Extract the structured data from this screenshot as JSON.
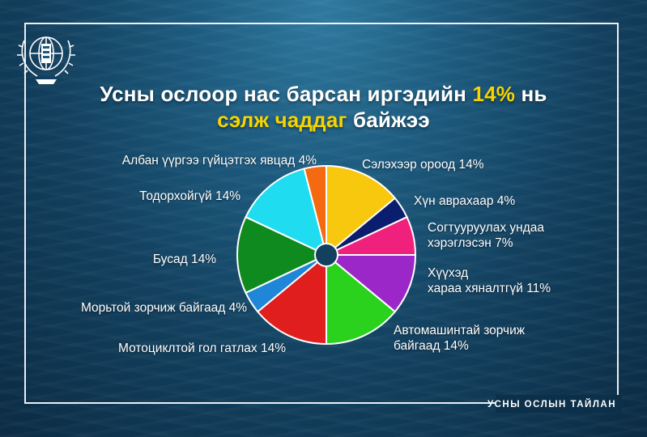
{
  "title": {
    "line1_pre": "Усны ослоор нас барсан иргэдийн ",
    "line1_hl": "14%",
    "line1_post": " нь",
    "line2_hl": "сэлж чаддаг",
    "line2_post": " байжээ"
  },
  "footer": "УСНЫ ОСЛЫН ТАЙЛАН",
  "colors": {
    "highlight": "#f5d400",
    "center": "#12405e"
  },
  "chart_data": {
    "type": "pie",
    "slices": [
      {
        "label": "Сэлэхээр ороод 14%",
        "lines": [
          "Сэлэхээр ороод 14%"
        ],
        "value": 14,
        "color": "#f7c80d"
      },
      {
        "label": "Хүн аврахаар 4%",
        "lines": [
          "Хүн аврахаар 4%"
        ],
        "value": 4,
        "color": "#0b1d6e"
      },
      {
        "label": "Согтууруулах ундаа хэрэглэсэн 7%",
        "lines": [
          "Согтууруулах ундаа",
          "хэрэглэсэн 7%"
        ],
        "value": 7,
        "color": "#f0217c"
      },
      {
        "label": "Хүүхэд хараа хяналтгүй 11%",
        "lines": [
          "Хүүхэд",
          "хараа хяналтгүй 11%"
        ],
        "value": 11,
        "color": "#9b27c9"
      },
      {
        "label": "Автомашинтай зорчиж байгаад 14%",
        "lines": [
          "Автомашинтай зорчиж",
          "байгаад 14%"
        ],
        "value": 14,
        "color": "#2ad21e"
      },
      {
        "label": "Мотоциклтой гол гатлах 14%",
        "lines": [
          "Мотоциклтой гол гатлах 14%"
        ],
        "value": 14,
        "color": "#e01e1e"
      },
      {
        "label": "Морьтой зорчиж байгаад 4%",
        "lines": [
          "Морьтой зорчиж байгаад 4%"
        ],
        "value": 4,
        "color": "#1f86d8"
      },
      {
        "label": "Бусад 14%",
        "lines": [
          "Бусад 14%"
        ],
        "value": 14,
        "color": "#0f8a1e"
      },
      {
        "label": "Тодорхойгүй 14%",
        "lines": [
          "Тодорхойгүй 14%"
        ],
        "value": 14,
        "color": "#20dcf0"
      },
      {
        "label": "Албан үүргээ гүйцэтгэх явцад 4%",
        "lines": [
          "Албан үүргээ гүйцэтгэх явцад 4%"
        ],
        "value": 4,
        "color": "#f56a10"
      }
    ]
  }
}
